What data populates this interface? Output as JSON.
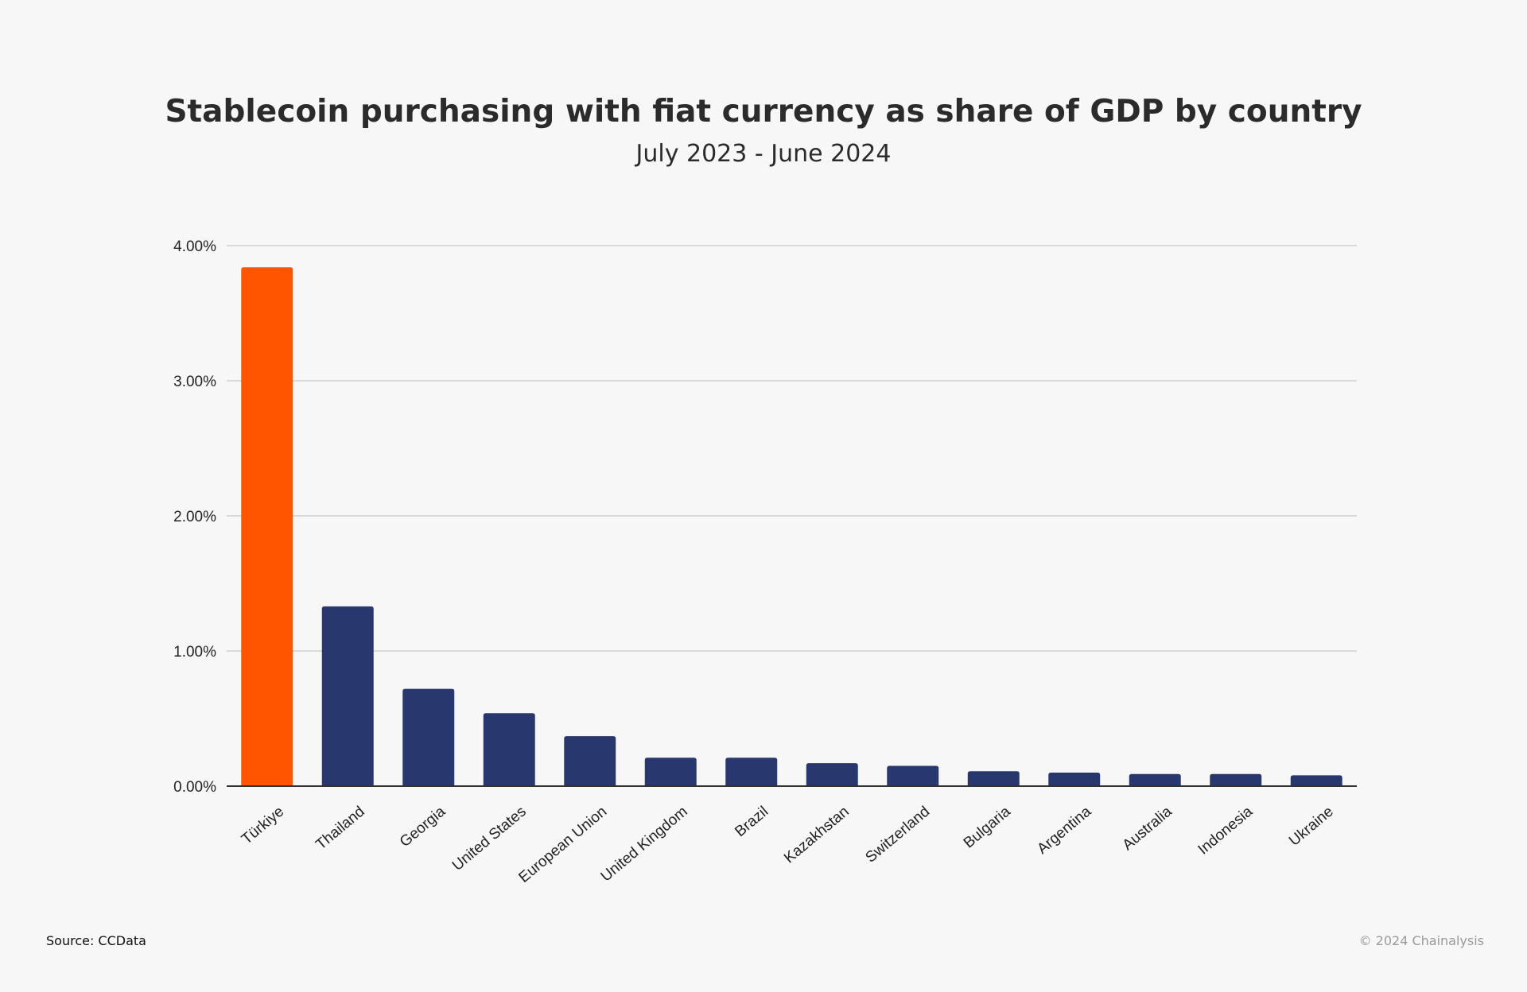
{
  "title": "Stablecoin purchasing with fiat currency as share of GDP by country",
  "subtitle": "July 2023 - June 2024",
  "footer": {
    "source": "Source: CCData",
    "copyright": "© 2024 Chainalysis"
  },
  "colors": {
    "highlight": "#ff5500",
    "bar": "#29376f",
    "gridline": "#d9d9d9",
    "axis": "#333333",
    "background": "#f7f7f7"
  },
  "chart_data": {
    "type": "bar",
    "title": "Stablecoin purchasing with fiat currency as share of GDP by country",
    "subtitle": "July 2023 - June 2024",
    "xlabel": "",
    "ylabel": "",
    "categories": [
      "Türkiye",
      "Thailand",
      "Georgia",
      "United States",
      "European Union",
      "United Kingdom",
      "Brazil",
      "Kazakhstan",
      "Switzerland",
      "Bulgaria",
      "Argentina",
      "Australia",
      "Indonesia",
      "Ukraine"
    ],
    "values": [
      3.84,
      1.33,
      0.72,
      0.54,
      0.37,
      0.21,
      0.21,
      0.17,
      0.15,
      0.11,
      0.1,
      0.09,
      0.09,
      0.08
    ],
    "highlight_category": "Türkiye",
    "ylim": [
      0,
      4
    ],
    "yticks": [
      0,
      1,
      2,
      3,
      4
    ],
    "ytick_labels": [
      "0.00%",
      "1.00%",
      "2.00%",
      "3.00%",
      "4.00%"
    ],
    "grid": true,
    "legend": "none"
  }
}
